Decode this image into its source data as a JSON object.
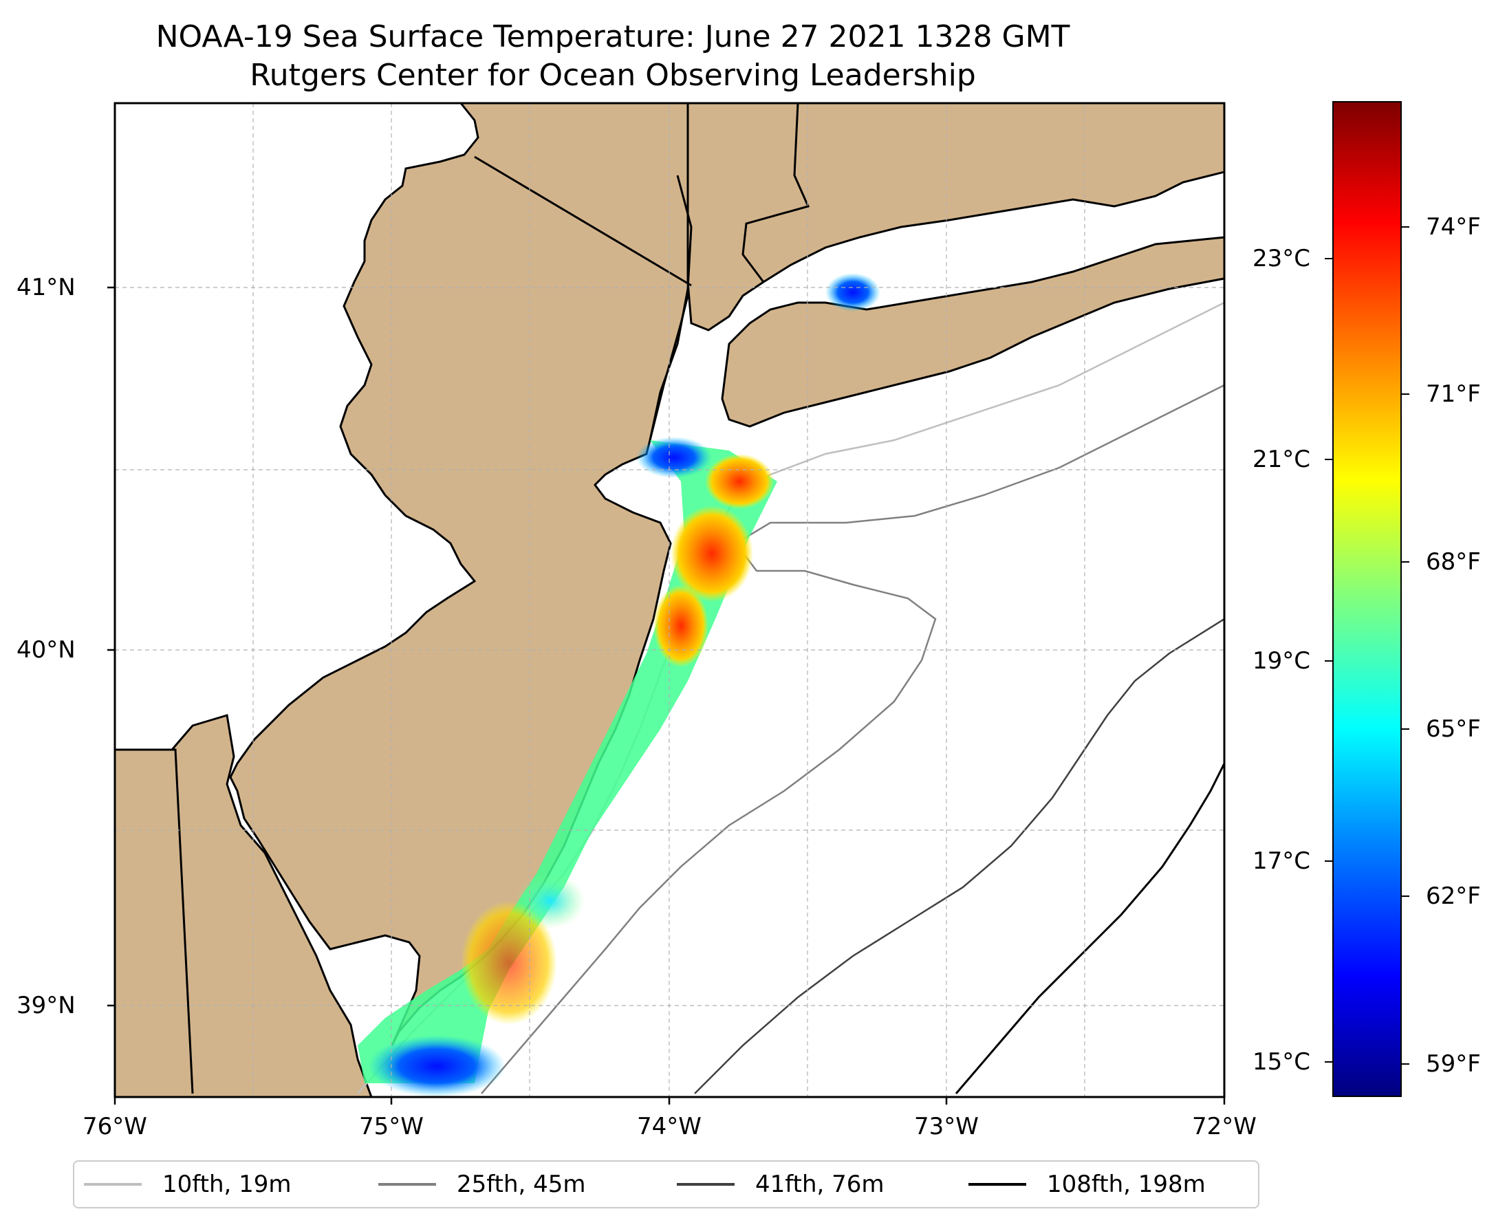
{
  "title": {
    "line1": "NOAA-19 Sea Surface Temperature: June 27 2021 1328 GMT",
    "line2": "Rutgers Center for Ocean Observing Leadership"
  },
  "map": {
    "region": "New Jersey / New York Bight",
    "land_color": "#d2b48c",
    "water_color": "#ffffff",
    "lon_labels": [
      "76°W",
      "75°W",
      "74°W",
      "73°W",
      "72°W"
    ],
    "lat_labels": [
      "41°N",
      "40°N",
      "39°N"
    ],
    "gridlines": true
  },
  "colorbar": {
    "colormap": "jet",
    "celsius_labels": [
      "23°C",
      "21°C",
      "19°C",
      "17°C",
      "15°C"
    ],
    "fahrenheit_labels": [
      "74°F",
      "71°F",
      "68°F",
      "65°F",
      "62°F",
      "59°F"
    ]
  },
  "legend": {
    "items": [
      {
        "label": "10fth, 19m",
        "color": "#bfbfbf"
      },
      {
        "label": "25fth, 45m",
        "color": "#808080"
      },
      {
        "label": "41fth, 76m",
        "color": "#404040"
      },
      {
        "label": "108fth, 198m",
        "color": "#000000"
      }
    ]
  }
}
